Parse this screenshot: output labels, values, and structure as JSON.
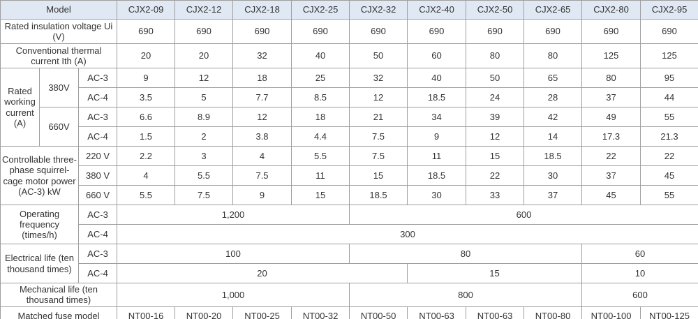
{
  "colors": {
    "header_bg": "#dfe8f3",
    "border": "#9e9e9e",
    "text": "#333333"
  },
  "table": {
    "title": "CJX2 contactor specification table",
    "models": [
      "CJX2-09",
      "CJX2-12",
      "CJX2-18",
      "CJX2-25",
      "CJX2-32",
      "CJX2-40",
      "CJX2-50",
      "CJX2-65",
      "CJX2-80",
      "CJX2-95"
    ],
    "grid": [
      [
        {
          "t": "Model",
          "cs": 3,
          "k": "header"
        },
        {
          "t": "CJX2-09",
          "k": "header"
        },
        {
          "t": "CJX2-12",
          "k": "header"
        },
        {
          "t": "CJX2-18",
          "k": "header"
        },
        {
          "t": "CJX2-25",
          "k": "header"
        },
        {
          "t": "CJX2-32",
          "k": "header"
        },
        {
          "t": "CJX2-40",
          "k": "header"
        },
        {
          "t": "CJX2-50",
          "k": "header"
        },
        {
          "t": "CJX2-65",
          "k": "header"
        },
        {
          "t": "CJX2-80",
          "k": "header"
        },
        {
          "t": "CJX2-95",
          "k": "header"
        }
      ],
      [
        {
          "t": "Rated insulation voltage Ui (V)",
          "cs": 3,
          "k": "label"
        },
        "690",
        "690",
        "690",
        "690",
        "690",
        "690",
        "690",
        "690",
        "690",
        "690"
      ],
      [
        {
          "t": "Conventional thermal current Ith (A)",
          "cs": 3,
          "k": "label"
        },
        "20",
        "20",
        "32",
        "40",
        "50",
        "60",
        "80",
        "80",
        "125",
        "125"
      ],
      [
        {
          "t": "Rated working current (A)",
          "rs": 4,
          "k": "label"
        },
        {
          "t": "380V",
          "rs": 2,
          "k": "sublabel"
        },
        {
          "t": "AC-3",
          "k": "sublabel"
        },
        "9",
        "12",
        "18",
        "25",
        "32",
        "40",
        "50",
        "65",
        "80",
        "95"
      ],
      [
        {
          "t": "AC-4",
          "k": "sublabel"
        },
        "3.5",
        "5",
        "7.7",
        "8.5",
        "12",
        "18.5",
        "24",
        "28",
        "37",
        "44"
      ],
      [
        {
          "t": "660V",
          "rs": 2,
          "k": "sublabel"
        },
        {
          "t": "AC-3",
          "k": "sublabel"
        },
        "6.6",
        "8.9",
        "12",
        "18",
        "21",
        "34",
        "39",
        "42",
        "49",
        "55"
      ],
      [
        {
          "t": "AC-4",
          "k": "sublabel"
        },
        "1.5",
        "2",
        "3.8",
        "4.4",
        "7.5",
        "9",
        "12",
        "14",
        "17.3",
        "21.3"
      ],
      [
        {
          "t": "Controllable three-phase squirrel-cage motor power (AC-3) kW",
          "rs": 3,
          "cs": 2,
          "k": "label"
        },
        {
          "t": "220 V",
          "k": "sublabel"
        },
        "2.2",
        "3",
        "4",
        "5.5",
        "7.5",
        "11",
        "15",
        "18.5",
        "22",
        "22"
      ],
      [
        {
          "t": "380 V",
          "k": "sublabel"
        },
        "4",
        "5.5",
        "7.5",
        "11",
        "15",
        "18.5",
        "22",
        "30",
        "37",
        "45"
      ],
      [
        {
          "t": "660 V",
          "k": "sublabel"
        },
        "5.5",
        "7.5",
        "9",
        "15",
        "18.5",
        "30",
        "33",
        "37",
        "45",
        "55"
      ],
      [
        {
          "t": "Operating frequency (times/h)",
          "rs": 2,
          "cs": 2,
          "k": "label"
        },
        {
          "t": "AC-3",
          "k": "sublabel"
        },
        {
          "t": "1,200",
          "cs": 4
        },
        {
          "t": "600",
          "cs": 6
        }
      ],
      [
        {
          "t": "AC-4",
          "k": "sublabel"
        },
        {
          "t": "300",
          "cs": 10
        }
      ],
      [
        {
          "t": "Electrical life (ten thousand times)",
          "rs": 2,
          "cs": 2,
          "k": "label"
        },
        {
          "t": "AC-3",
          "k": "sublabel"
        },
        {
          "t": "100",
          "cs": 4
        },
        {
          "t": "80",
          "cs": 4
        },
        {
          "t": "60",
          "cs": 2
        }
      ],
      [
        {
          "t": "AC-4",
          "k": "sublabel"
        },
        {
          "t": "20",
          "cs": 5
        },
        {
          "t": "15",
          "cs": 3
        },
        {
          "t": "10",
          "cs": 2
        }
      ],
      [
        {
          "t": "Mechanical life (ten thousand times)",
          "cs": 3,
          "k": "label"
        },
        {
          "t": "1,000",
          "cs": 4
        },
        {
          "t": "800",
          "cs": 4
        },
        {
          "t": "600",
          "cs": 2
        }
      ],
      [
        {
          "t": "Matched fuse model",
          "cs": 3,
          "k": "label"
        },
        {
          "t": "NT00-16",
          "edge": "r"
        },
        {
          "t": "NT00-20",
          "edge": "l"
        },
        "NT00-25",
        "NT00-32",
        "NT00-50",
        "NT00-63",
        "NT00-63",
        "NT00-80",
        "NT00-100",
        "NT00-125"
      ]
    ]
  }
}
